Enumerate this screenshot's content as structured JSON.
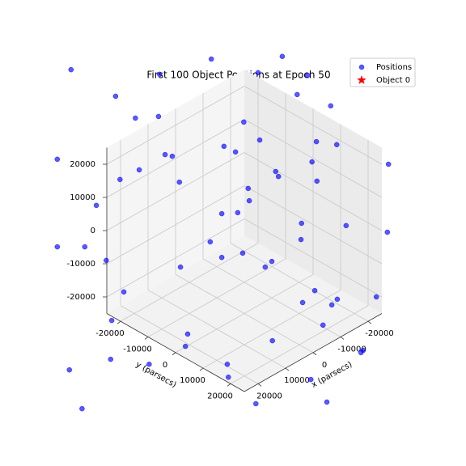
{
  "chart_data": {
    "type": "scatter3d",
    "title": "First 100 Object Positions at Epoch 50",
    "xlabel": "x (parsecs)",
    "ylabel": "y (parsecs)",
    "xlim": [
      -25000,
      25000
    ],
    "ylim": [
      -25000,
      25000
    ],
    "zlim": [
      -25000,
      25000
    ],
    "xticks": [
      -20000,
      -10000,
      0,
      10000,
      20000
    ],
    "yticks": [
      -20000,
      -10000,
      0,
      10000,
      20000
    ],
    "zticks": [
      -20000,
      -10000,
      0,
      10000,
      20000
    ],
    "grid": true,
    "legend": "upper right",
    "series": [
      {
        "name": "Positions",
        "color": "#0000ff",
        "marker": "circle",
        "x": [
          31500,
          6000,
          -6900,
          -2500,
          15400,
          23400,
          19800,
          15600,
          -9600,
          -11500,
          -15700,
          100,
          -2800,
          3700,
          1600,
          14400,
          13100,
          -13100,
          -16800,
          -12300,
          -26200,
          34000,
          22600,
          19100,
          11800,
          -5700,
          -6200,
          -13200,
          -700,
          -900,
          26900,
          4100,
          1200,
          -10400,
          -18500,
          -26000,
          6200,
          -10300,
          34000,
          29000,
          300,
          4100,
          25100,
          -5000,
          -3800,
          11600,
          -12800,
          21900,
          -16900,
          -10600,
          -24000,
          -15900,
          24100,
          -14300,
          10300,
          -5100,
          10700,
          -21600,
          -21200,
          17300,
          24300,
          3100,
          31800,
          2900,
          -12100,
          -2100,
          -15000,
          29500
        ],
        "y": [
          -31500,
          -6000,
          6900,
          2500,
          -15400,
          -23400,
          -19800,
          -15600,
          9600,
          11500,
          15700,
          -100,
          2800,
          -3700,
          -1600,
          -14400,
          -13100,
          13100,
          16800,
          12300,
          26200,
          -34000,
          -22600,
          -19100,
          -11800,
          5700,
          6200,
          13200,
          700,
          900,
          -26900,
          -4100,
          -1200,
          10400,
          18500,
          26000,
          -6200,
          10300,
          -34000,
          -29000,
          -300,
          -4100,
          -25100,
          5000,
          3800,
          -11600,
          12800,
          -21900,
          16900,
          10600,
          24000,
          15900,
          -24100,
          14300,
          -10300,
          5100,
          -10700,
          21600,
          21200,
          -17300,
          -24300,
          -3100,
          -31800,
          -2900,
          12100,
          2100,
          15000,
          -29500
        ],
        "z": [
          48500,
          51700,
          52500,
          47600,
          47100,
          40500,
          33900,
          34400,
          41000,
          46800,
          37600,
          32700,
          27300,
          25400,
          23700,
          22900,
          22400,
          26800,
          25900,
          20700,
          20000,
          21500,
          15400,
          18300,
          14600,
          17800,
          16300,
          14900,
          12700,
          9000,
          7600,
          5100,
          5400,
          2200,
          1500,
          -500,
          -3400,
          -2700,
          -4900,
          -4900,
          -6800,
          -8100,
          -9000,
          -9300,
          -11000,
          -11000,
          -18100,
          -18500,
          -20700,
          -21700,
          -20000,
          -22400,
          -27100,
          -28500,
          -31200,
          -33200,
          -34900,
          -36100,
          -36800,
          -40300,
          -38800,
          -40300,
          -42000,
          -44200,
          -44900,
          -52200,
          -51700,
          -53700
        ]
      },
      {
        "name": "Object 0",
        "color": "#ff0000",
        "marker": "star",
        "x": [],
        "y": [],
        "z": []
      }
    ]
  }
}
